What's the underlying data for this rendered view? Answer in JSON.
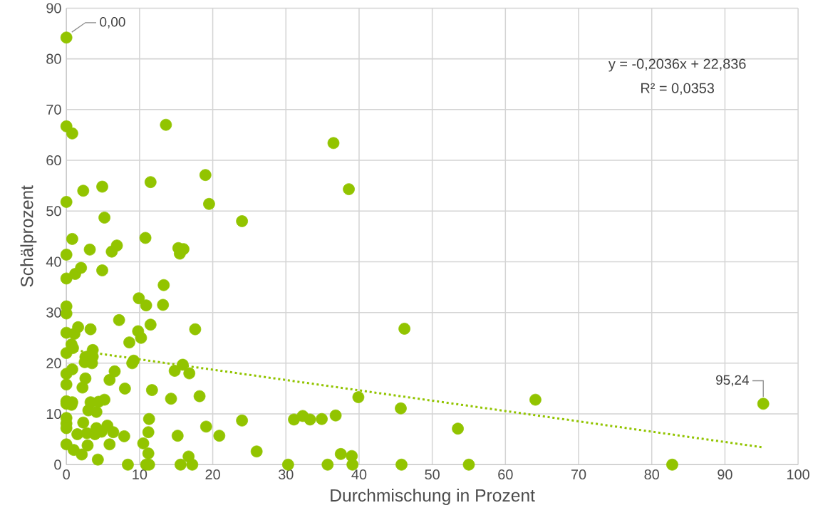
{
  "chart_data": {
    "type": "scatter",
    "xlabel": "Durchmischung in Prozent",
    "ylabel": "Schälprozent",
    "xlim": [
      0,
      100
    ],
    "ylim": [
      0,
      90
    ],
    "xticks": [
      0,
      10,
      20,
      30,
      40,
      50,
      60,
      70,
      80,
      90,
      100
    ],
    "yticks": [
      0,
      10,
      20,
      30,
      40,
      50,
      60,
      70,
      80,
      90
    ],
    "grid": true,
    "series": [
      {
        "color": "#92c400",
        "marker": "circle",
        "x": [
          0,
          0,
          0.8,
          0,
          0,
          0,
          0,
          0,
          0,
          0,
          0,
          0,
          0,
          0,
          0,
          0,
          0,
          0,
          0.8,
          1.2,
          2,
          3.2,
          2.3,
          1.1,
          1.6,
          0.7,
          0.9,
          0.8,
          0.8,
          0.7,
          1,
          1.5,
          2.1,
          2.3,
          2.2,
          2.6,
          2.6,
          2.5,
          2.8,
          2.9,
          3,
          3.3,
          3.3,
          3.5,
          3.6,
          3.6,
          3.9,
          4.1,
          4.1,
          4.4,
          4.3,
          4.8,
          4.9,
          4.9,
          5.2,
          5.2,
          5.6,
          5.9,
          5.9,
          6.2,
          6.4,
          6.6,
          6.9,
          7.2,
          7.9,
          8,
          8.4,
          8.6,
          9,
          9.2,
          9.8,
          9.9,
          10.2,
          10.5,
          10.8,
          10.9,
          10.9,
          11.2,
          11.2,
          11.3,
          11.3,
          11.5,
          11.5,
          11.7,
          13.2,
          13.3,
          13.6,
          14.3,
          14.8,
          15.2,
          15.3,
          15.5,
          15.6,
          15.9,
          16,
          16.7,
          16.8,
          17.2,
          17.6,
          18.2,
          19,
          19.1,
          19.5,
          20.9,
          24,
          24,
          26,
          30.3,
          31.1,
          32.3,
          33.3,
          34.9,
          35.7,
          36.5,
          36.8,
          37.5,
          38.6,
          39,
          39.1,
          39.9,
          45.7,
          45.8,
          46.2,
          53.5,
          55,
          64.1,
          82.8,
          95.24
        ],
        "values": [
          84.2,
          66.7,
          65.3,
          51.8,
          41.4,
          36.7,
          31.2,
          29.8,
          26,
          22,
          17.9,
          15.8,
          12.5,
          12,
          9.2,
          8.1,
          7.2,
          4,
          44.5,
          37.6,
          38.8,
          42.4,
          54,
          25.8,
          27.1,
          23.7,
          23,
          18.8,
          12.3,
          11.8,
          2.9,
          6,
          2,
          8.3,
          15.2,
          17,
          21.2,
          20.2,
          6.2,
          3.8,
          10.7,
          26.7,
          12.3,
          20,
          22.6,
          21.3,
          6,
          7.2,
          10.4,
          12.4,
          1,
          6.5,
          38.3,
          54.8,
          12.8,
          48.7,
          7.7,
          16.7,
          4,
          42,
          6.4,
          18.4,
          43.2,
          28.5,
          5.6,
          15,
          0,
          24.1,
          20,
          20.5,
          26.3,
          32.8,
          25,
          4.2,
          44.7,
          0,
          31.4,
          6.4,
          2.2,
          9,
          0,
          27.6,
          55.7,
          14.7,
          31.5,
          35.4,
          67,
          13,
          18.5,
          5.7,
          42.7,
          41.6,
          0,
          19.7,
          42.5,
          1.6,
          18,
          0,
          26.7,
          13.5,
          57.1,
          7.5,
          51.4,
          5.7,
          48,
          8.7,
          2.6,
          0,
          8.9,
          9.6,
          8.9,
          9,
          0,
          63.4,
          9.7,
          2.1,
          54.3,
          1.7,
          0,
          13.3,
          11.1,
          0,
          26.8,
          7.1,
          0,
          12.8,
          0,
          12
        ]
      },
      {
        "type": "line",
        "color": "#92c400",
        "line_style": "dotted",
        "marker": "none",
        "x": [
          0,
          95.24
        ],
        "values": [
          22.8,
          3.4
        ]
      }
    ],
    "annotations": [
      {
        "text": "0,00",
        "x": 0,
        "y": 84.2
      },
      {
        "text": "95,24",
        "x": 95.24,
        "y": 12
      },
      "y = -0,2036x + 22,836",
      "R² = 0,0353"
    ]
  }
}
